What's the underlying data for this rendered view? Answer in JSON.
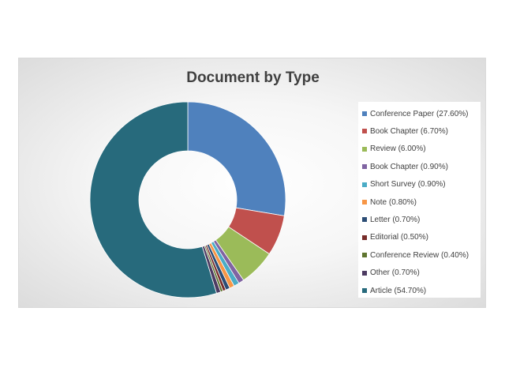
{
  "chart_data": {
    "type": "pie",
    "variant": "donut",
    "title": "Document by Type",
    "legend_position": "right",
    "slices": [
      {
        "label": "Conference Paper (27.60%)",
        "value": 27.6,
        "color": "#4f81bd"
      },
      {
        "label": "Book Chapter (6.70%)",
        "value": 6.7,
        "color": "#c0504d"
      },
      {
        "label": "Review (6.00%)",
        "value": 6.0,
        "color": "#9bbb59"
      },
      {
        "label": "Book Chapter (0.90%)",
        "value": 0.9,
        "color": "#8064a2"
      },
      {
        "label": "Short Survey (0.90%)",
        "value": 0.9,
        "color": "#4bacc6"
      },
      {
        "label": "Note (0.80%)",
        "value": 0.8,
        "color": "#f79646"
      },
      {
        "label": "Letter (0.70%)",
        "value": 0.7,
        "color": "#2c4d75"
      },
      {
        "label": "Editorial (0.50%)",
        "value": 0.5,
        "color": "#772c2a"
      },
      {
        "label": "Conference Review (0.40%)",
        "value": 0.4,
        "color": "#5f7530"
      },
      {
        "label": "Other (0.70%)",
        "value": 0.7,
        "color": "#4d3b62"
      },
      {
        "label": "Article (54.70%)",
        "value": 54.7,
        "color": "#276a7c"
      }
    ]
  }
}
